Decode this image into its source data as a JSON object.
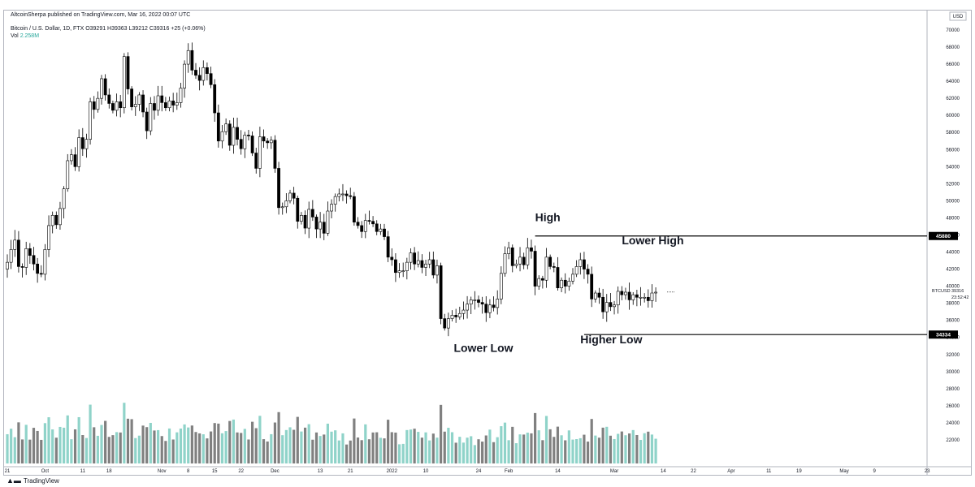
{
  "header": {
    "publisher": "AltcoinSherpa published on TradingView.com, Mar 16, 2022 00:07 UTC",
    "symbol_line": "Bitcoin / U.S. Dollar, 1D, FTX O39291 H39363 L39212 C39316 +25 (+0.06%)",
    "volume_label": "Vol",
    "volume_value": "2.258M"
  },
  "footer": {
    "brand": "TradingView",
    "logo_icon": "tradingview-logo-icon"
  },
  "colors": {
    "candle_up": "#ffffff",
    "candle_down": "#000000",
    "candle_outline": "#000000",
    "volume_up": "#8fd3c9",
    "volume_down": "#808080",
    "level_line": "#000000"
  },
  "chart_data": {
    "type": "candlestick",
    "symbol": "BTCUSD",
    "interval": "1D",
    "ylim": [
      20000,
      70000
    ],
    "y_ticks": [
      "22000",
      "24000",
      "26000",
      "28000",
      "30000",
      "32000",
      "34000",
      "36000",
      "38000",
      "40000",
      "42000",
      "44000",
      "46000",
      "48000",
      "50000",
      "52000",
      "54000",
      "56000",
      "58000",
      "60000",
      "62000",
      "64000",
      "66000",
      "68000",
      "70000"
    ],
    "y_axis_unit": "USD",
    "x_ticks": [
      {
        "label": "21",
        "day": 0
      },
      {
        "label": "Oct",
        "day": 10
      },
      {
        "label": "11",
        "day": 20
      },
      {
        "label": "18",
        "day": 27
      },
      {
        "label": "Nov",
        "day": 41
      },
      {
        "label": "8",
        "day": 48
      },
      {
        "label": "15",
        "day": 55
      },
      {
        "label": "22",
        "day": 62
      },
      {
        "label": "Dec",
        "day": 71
      },
      {
        "label": "13",
        "day": 83
      },
      {
        "label": "21",
        "day": 91
      },
      {
        "label": "2022",
        "day": 102
      },
      {
        "label": "10",
        "day": 111
      },
      {
        "label": "24",
        "day": 125
      },
      {
        "label": "Feb",
        "day": 133
      },
      {
        "label": "14",
        "day": 146
      },
      {
        "label": "Mar",
        "day": 161
      },
      {
        "label": "14",
        "day": 174
      },
      {
        "label": "22",
        "day": 182
      },
      {
        "label": "Apr",
        "day": 192
      },
      {
        "label": "11",
        "day": 202
      },
      {
        "label": "19",
        "day": 210
      },
      {
        "label": "May",
        "day": 222
      },
      {
        "label": "9",
        "day": 230
      },
      {
        "label": "23",
        "day": 244
      }
    ],
    "last_day": 175,
    "price_label": {
      "symbol": "BTCUSD",
      "price": "39316",
      "countdown": "23:52:42"
    },
    "levels": [
      {
        "label": "High",
        "price": 45880,
        "start_day": 140,
        "price_text": "45880"
      },
      {
        "label": "Higher Low",
        "price": 34334,
        "start_day": 153,
        "price_text": "34334"
      }
    ],
    "annotations": [
      {
        "text": "High",
        "day": 140,
        "price": 47600
      },
      {
        "text": "Lower High",
        "day": 163,
        "price": 44900
      },
      {
        "text": "Lower Low",
        "day": 121,
        "price": 32300
      },
      {
        "text": "Higher Low",
        "day": 152,
        "price": 33300
      }
    ],
    "closes": [
      42800,
      44300,
      45400,
      42300,
      42200,
      44400,
      43600,
      42600,
      41500,
      41400,
      44300,
      47100,
      48300,
      47200,
      49100,
      51400,
      54700,
      55400,
      54000,
      57400,
      56100,
      57200,
      61600,
      60700,
      62000,
      64300,
      62400,
      61400,
      60600,
      61600,
      60900,
      66900,
      63100,
      61000,
      61300,
      62400,
      60400,
      58200,
      61400,
      60600,
      62300,
      61500,
      60900,
      61700,
      61200,
      61500,
      63200,
      66000,
      67600,
      65300,
      64700,
      64100,
      65600,
      64900,
      63600,
      60300,
      57000,
      58100,
      59000,
      56500,
      58600,
      57200,
      56100,
      57700,
      57600,
      55600,
      53800,
      57500,
      57000,
      56800,
      57100,
      53800,
      49200,
      49300,
      50000,
      50900,
      50300,
      47600,
      48300,
      46800,
      49000,
      48100,
      46700,
      47500,
      46200,
      48800,
      49600,
      50500,
      50800,
      50800,
      50600,
      50500,
      47500,
      47100,
      46400,
      47700,
      47600,
      47300,
      46400,
      46700,
      45800,
      43400,
      43100,
      41600,
      41800,
      41800,
      42800,
      43900,
      42600,
      43000,
      42200,
      42600,
      43100,
      41300,
      42400,
      36200,
      35100,
      36200,
      36600,
      36400,
      36800,
      37200,
      37900,
      38400,
      38400,
      38100,
      37900,
      36900,
      37800,
      37500,
      38500,
      41500,
      43800,
      44500,
      42400,
      42600,
      43400,
      42500,
      44500,
      44100,
      40000,
      40900,
      40700,
      43400,
      42300,
      42200,
      39800,
      40700,
      40000,
      40600,
      41400,
      42300,
      43100,
      42000,
      41400,
      38500,
      39200,
      38700,
      37000,
      38100,
      37600,
      37800,
      39400,
      39000,
      39300,
      38400,
      39000,
      38700,
      38700,
      38700,
      38300,
      39200,
      39300
    ],
    "volume_ylim": [
      0,
      620
    ]
  }
}
